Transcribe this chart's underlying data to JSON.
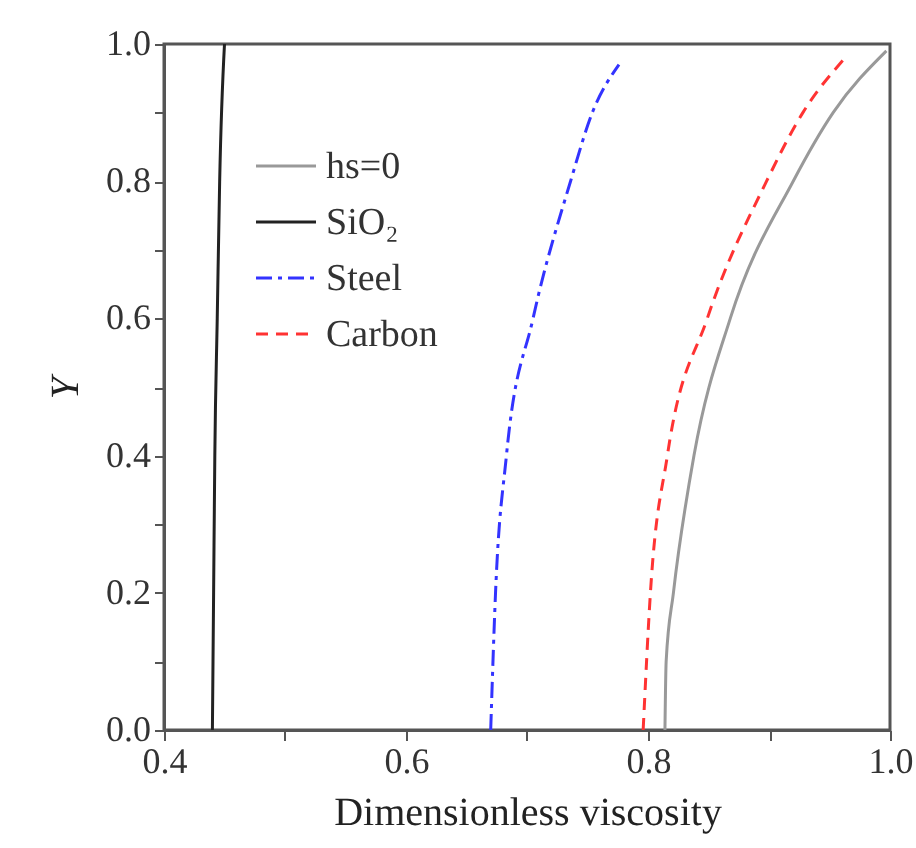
{
  "chart_data": {
    "type": "line",
    "xlabel": "Dimensionless viscosity",
    "ylabel": "Y",
    "xlim": [
      0.4,
      1.0
    ],
    "ylim": [
      0,
      1.0
    ],
    "xticks": [
      0.4,
      {
        "value": 0.5,
        "label": null
      },
      0.6,
      {
        "value": 0.7,
        "label": null
      },
      0.8,
      {
        "value": 0.9,
        "label": null
      },
      {
        "value": 1.0,
        "label": "1.0"
      }
    ],
    "yticks": [
      {
        "value": 0,
        "label": "0.0"
      },
      {
        "value": 0.1,
        "label": null
      },
      0.2,
      {
        "value": 0.3,
        "label": null
      },
      0.4,
      {
        "value": 0.5,
        "label": null
      },
      0.6,
      {
        "value": 0.7,
        "label": null
      },
      0.8,
      {
        "value": 0.9,
        "label": null
      },
      {
        "value": 1.0,
        "label": "1.0"
      }
    ],
    "legend": "top left",
    "grid": false,
    "marker": "none",
    "series": [
      {
        "name": "hs=0",
        "color": "#999999",
        "line_style": "solid",
        "x": [
          0.814,
          0.815,
          0.821,
          0.838,
          0.868,
          0.92,
          0.953,
          0.997
        ],
        "values": [
          0,
          0.1,
          0.2,
          0.4,
          0.6,
          0.8,
          0.9,
          0.99
        ]
      },
      {
        "name": "SiO₂",
        "color": "#222222",
        "line_style": "solid",
        "x": [
          0.44,
          0.441,
          0.442,
          0.444,
          0.446,
          0.45
        ],
        "values": [
          0,
          0.2,
          0.4,
          0.6,
          0.8,
          1.0
        ]
      },
      {
        "name": "Steel",
        "color": "#3333ff",
        "line_style": "dashdot",
        "x": [
          0.67,
          0.674,
          0.683,
          0.705,
          0.736,
          0.754,
          0.776
        ],
        "values": [
          0,
          0.2,
          0.4,
          0.6,
          0.8,
          0.9,
          0.97
        ]
      },
      {
        "name": "Carbon",
        "color": "#ff3333",
        "line_style": "dashed",
        "x": [
          0.796,
          0.802,
          0.816,
          0.849,
          0.898,
          0.928,
          0.963
        ],
        "values": [
          0,
          0.2,
          0.4,
          0.6,
          0.8,
          0.9,
          0.98
        ]
      }
    ]
  }
}
